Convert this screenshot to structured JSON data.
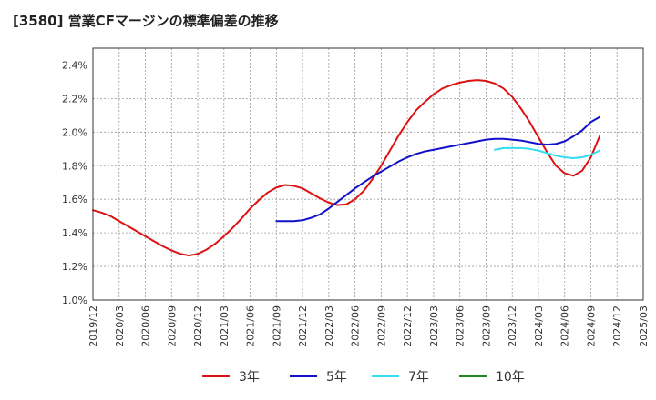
{
  "chart_data": {
    "type": "line",
    "title": "[3580]  営業CFマージンの標準偏差の推移",
    "xlabel": "",
    "ylabel": "",
    "ylim": [
      1.0,
      2.5
    ],
    "yticks": [
      "1.0%",
      "1.2%",
      "1.4%",
      "1.6%",
      "1.8%",
      "2.0%",
      "2.2%",
      "2.4%"
    ],
    "ytick_values": [
      1.0,
      1.2,
      1.4,
      1.6,
      1.8,
      2.0,
      2.2,
      2.4
    ],
    "xticks": [
      "2019/12",
      "2020/03",
      "2020/06",
      "2020/09",
      "2020/12",
      "2021/03",
      "2021/06",
      "2021/09",
      "2021/12",
      "2022/03",
      "2022/06",
      "2022/09",
      "2022/12",
      "2023/03",
      "2023/06",
      "2023/09",
      "2023/12",
      "2024/03",
      "2024/06",
      "2024/09",
      "2024/12",
      "2025/03"
    ],
    "grid": true,
    "legend": "bottom",
    "colors": {
      "3年": "#dd1111",
      "5年": "#1111cc",
      "7年": "#33ddee",
      "10年": "#228822"
    },
    "series": [
      {
        "name": "3年",
        "color": "#dd1111",
        "points": [
          [
            "2019/12",
            1.535
          ],
          [
            "2020/01",
            1.52
          ],
          [
            "2020/02",
            1.5
          ],
          [
            "2020/03",
            1.47
          ],
          [
            "2020/04",
            1.44
          ],
          [
            "2020/05",
            1.41
          ],
          [
            "2020/06",
            1.38
          ],
          [
            "2020/07",
            1.35
          ],
          [
            "2020/08",
            1.32
          ],
          [
            "2020/09",
            1.295
          ],
          [
            "2020/10",
            1.275
          ],
          [
            "2020/11",
            1.265
          ],
          [
            "2020/12",
            1.275
          ],
          [
            "2021/01",
            1.3
          ],
          [
            "2021/02",
            1.335
          ],
          [
            "2021/03",
            1.38
          ],
          [
            "2021/04",
            1.43
          ],
          [
            "2021/05",
            1.485
          ],
          [
            "2021/06",
            1.545
          ],
          [
            "2021/07",
            1.595
          ],
          [
            "2021/08",
            1.64
          ],
          [
            "2021/09",
            1.67
          ],
          [
            "2021/10",
            1.685
          ],
          [
            "2021/11",
            1.68
          ],
          [
            "2021/12",
            1.665
          ],
          [
            "2022/01",
            1.635
          ],
          [
            "2022/02",
            1.605
          ],
          [
            "2022/03",
            1.58
          ],
          [
            "2022/04",
            1.565
          ],
          [
            "2022/05",
            1.57
          ],
          [
            "2022/06",
            1.6
          ],
          [
            "2022/07",
            1.65
          ],
          [
            "2022/08",
            1.72
          ],
          [
            "2022/09",
            1.8
          ],
          [
            "2022/10",
            1.89
          ],
          [
            "2022/11",
            1.98
          ],
          [
            "2022/12",
            2.06
          ],
          [
            "2023/01",
            2.13
          ],
          [
            "2023/02",
            2.18
          ],
          [
            "2023/03",
            2.225
          ],
          [
            "2023/04",
            2.26
          ],
          [
            "2023/05",
            2.28
          ],
          [
            "2023/06",
            2.295
          ],
          [
            "2023/07",
            2.305
          ],
          [
            "2023/08",
            2.31
          ],
          [
            "2023/09",
            2.305
          ],
          [
            "2023/10",
            2.29
          ],
          [
            "2023/11",
            2.26
          ],
          [
            "2023/12",
            2.21
          ],
          [
            "2024/01",
            2.14
          ],
          [
            "2024/02",
            2.06
          ],
          [
            "2024/03",
            1.97
          ],
          [
            "2024/04",
            1.88
          ],
          [
            "2024/05",
            1.8
          ],
          [
            "2024/06",
            1.755
          ],
          [
            "2024/07",
            1.74
          ],
          [
            "2024/08",
            1.77
          ],
          [
            "2024/09",
            1.85
          ],
          [
            "2024/10",
            1.975
          ]
        ]
      },
      {
        "name": "5年",
        "color": "#1111cc",
        "points": [
          [
            "2021/09",
            1.47
          ],
          [
            "2021/10",
            1.47
          ],
          [
            "2021/11",
            1.47
          ],
          [
            "2021/12",
            1.475
          ],
          [
            "2022/01",
            1.49
          ],
          [
            "2022/02",
            1.51
          ],
          [
            "2022/03",
            1.545
          ],
          [
            "2022/04",
            1.585
          ],
          [
            "2022/05",
            1.625
          ],
          [
            "2022/06",
            1.665
          ],
          [
            "2022/07",
            1.7
          ],
          [
            "2022/08",
            1.735
          ],
          [
            "2022/09",
            1.765
          ],
          [
            "2022/10",
            1.795
          ],
          [
            "2022/11",
            1.825
          ],
          [
            "2022/12",
            1.85
          ],
          [
            "2023/01",
            1.87
          ],
          [
            "2023/02",
            1.885
          ],
          [
            "2023/03",
            1.895
          ],
          [
            "2023/04",
            1.905
          ],
          [
            "2023/05",
            1.915
          ],
          [
            "2023/06",
            1.925
          ],
          [
            "2023/07",
            1.935
          ],
          [
            "2023/08",
            1.945
          ],
          [
            "2023/09",
            1.955
          ],
          [
            "2023/10",
            1.96
          ],
          [
            "2023/11",
            1.96
          ],
          [
            "2023/12",
            1.955
          ],
          [
            "2024/01",
            1.95
          ],
          [
            "2024/02",
            1.94
          ],
          [
            "2024/03",
            1.93
          ],
          [
            "2024/04",
            1.925
          ],
          [
            "2024/05",
            1.93
          ],
          [
            "2024/06",
            1.945
          ],
          [
            "2024/07",
            1.975
          ],
          [
            "2024/08",
            2.01
          ],
          [
            "2024/09",
            2.06
          ],
          [
            "2024/10",
            2.09
          ]
        ]
      },
      {
        "name": "7年",
        "color": "#33ddee",
        "points": [
          [
            "2023/10",
            1.895
          ],
          [
            "2023/11",
            1.905
          ],
          [
            "2023/12",
            1.905
          ],
          [
            "2024/01",
            1.905
          ],
          [
            "2024/02",
            1.9
          ],
          [
            "2024/03",
            1.89
          ],
          [
            "2024/04",
            1.875
          ],
          [
            "2024/05",
            1.86
          ],
          [
            "2024/06",
            1.85
          ],
          [
            "2024/07",
            1.845
          ],
          [
            "2024/08",
            1.85
          ],
          [
            "2024/09",
            1.865
          ],
          [
            "2024/10",
            1.89
          ]
        ]
      },
      {
        "name": "10年",
        "color": "#228822",
        "points": []
      }
    ]
  }
}
